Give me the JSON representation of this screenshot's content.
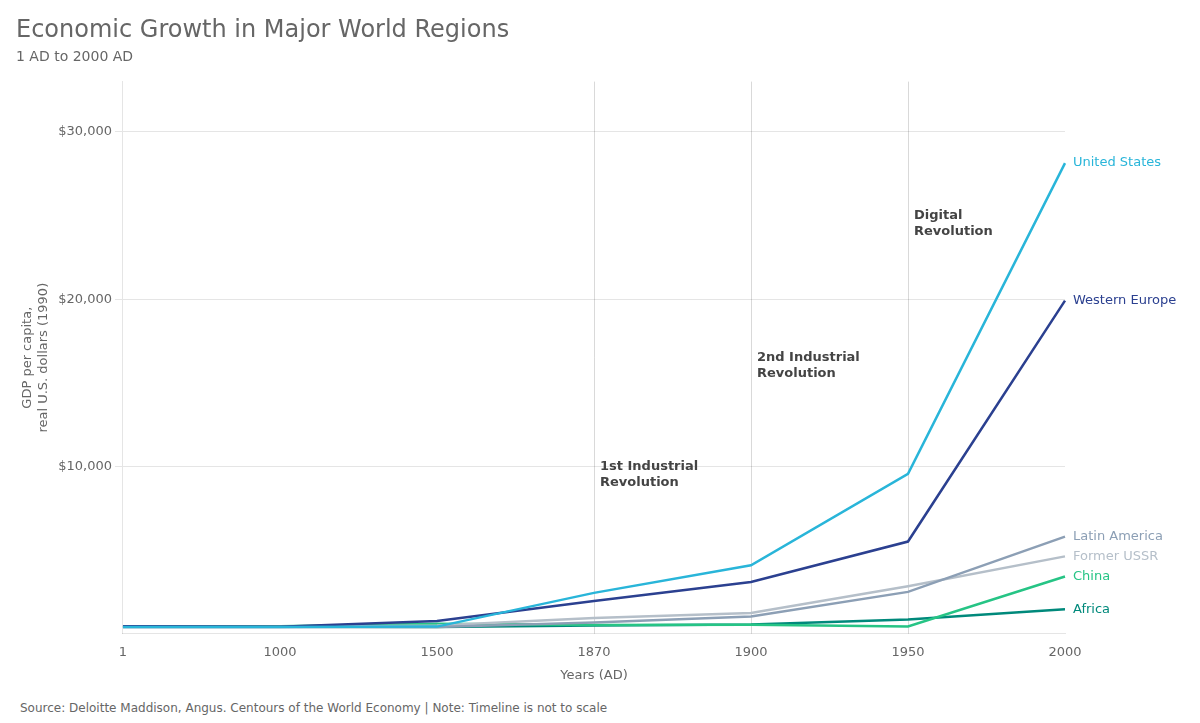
{
  "chart_data": {
    "type": "line",
    "title": "Economic Growth in Major World Regions",
    "subtitle": "1 AD to 2000 AD",
    "x_label": "Years (AD)",
    "y_label": "GDP per capita,\nreal U.S. dollars (1990)",
    "source": "Source: Deloitte Maddison, Angus. Centours of the World Economy | Note: Timeline is not to scale",
    "categories": [
      "1",
      "1000",
      "1500",
      "1870",
      "1900",
      "1950",
      "2000"
    ],
    "series": [
      {
        "name": "United States",
        "color": "#29b5d9",
        "values": [
          400,
          400,
          430,
          2445,
          4096,
          9561,
          28129
        ]
      },
      {
        "name": "Western Europe",
        "color": "#2b4090",
        "values": [
          450,
          425,
          771,
          1960,
          3092,
          5513,
          19912
        ]
      },
      {
        "name": "Latin America",
        "color": "#8c9fb5",
        "values": [
          400,
          400,
          400,
          681,
          1030,
          2504,
          5811
        ]
      },
      {
        "name": "Former USSR",
        "color": "#b5bfc9",
        "values": [
          400,
          400,
          500,
          943,
          1237,
          2841,
          4626
        ]
      },
      {
        "name": "China",
        "color": "#26c485",
        "values": [
          450,
          450,
          600,
          530,
          545,
          439,
          3425
        ]
      },
      {
        "name": "Africa",
        "color": "#00897b",
        "values": [
          425,
          416,
          400,
          500,
          550,
          852,
          1465
        ]
      }
    ],
    "ylim": [
      0,
      33000
    ],
    "yticks": [
      {
        "value": 10000,
        "label": "$10,000"
      },
      {
        "value": 20000,
        "label": "$20,000"
      },
      {
        "value": 30000,
        "label": "$30,000"
      }
    ],
    "grid": true,
    "annotations": [
      {
        "text": "1st Industrial\nRevolution",
        "x": "1870",
        "y": 9500
      },
      {
        "text": "2nd Industrial\nRevolution",
        "x": "1900",
        "y": 16000
      },
      {
        "text": "Digital\nRevolution",
        "x": "1950",
        "y": 24500
      }
    ]
  }
}
